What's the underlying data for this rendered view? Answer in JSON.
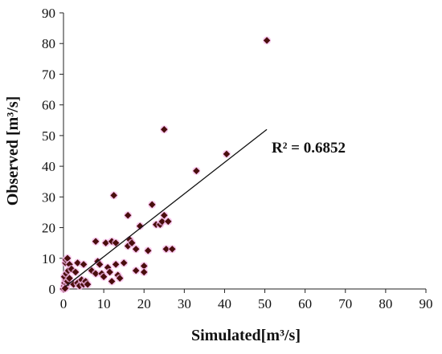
{
  "chart_data": {
    "type": "scatter",
    "xlabel": "Simulated[m³/s]",
    "ylabel": "Observed [m³/s]",
    "xlim": [
      0,
      90
    ],
    "ylim": [
      0,
      90
    ],
    "xticks": [
      0,
      10,
      20,
      30,
      40,
      50,
      60,
      70,
      80,
      90
    ],
    "yticks": [
      0,
      10,
      20,
      30,
      40,
      50,
      60,
      70,
      80,
      90
    ],
    "grid": false,
    "marker_color": "#4a0d0d",
    "halo_color": "#f5b8e8",
    "trendline": {
      "type": "linear",
      "x": [
        0.5,
        50.5
      ],
      "y": [
        0.8,
        52
      ],
      "r2_label": "R² = 0.6852"
    },
    "points": [
      [
        0,
        0
      ],
      [
        0.2,
        1
      ],
      [
        0.3,
        2
      ],
      [
        0.5,
        3
      ],
      [
        0.2,
        4
      ],
      [
        0.6,
        0.5
      ],
      [
        0.8,
        1.5
      ],
      [
        1,
        2.5
      ],
      [
        0.4,
        0.2
      ],
      [
        0.7,
        5
      ],
      [
        0.5,
        8.5
      ],
      [
        0.6,
        9.5
      ],
      [
        1,
        10
      ],
      [
        1.5,
        8
      ],
      [
        1.2,
        6
      ],
      [
        1.5,
        3.5
      ],
      [
        2,
        6.5
      ],
      [
        2.5,
        1.5
      ],
      [
        3,
        5.5
      ],
      [
        3.5,
        8.5
      ],
      [
        3.5,
        2
      ],
      [
        4,
        1
      ],
      [
        4.5,
        3
      ],
      [
        5,
        8
      ],
      [
        5,
        1.5
      ],
      [
        5.5,
        2.5
      ],
      [
        6,
        1.5
      ],
      [
        7,
        6
      ],
      [
        8,
        5
      ],
      [
        8,
        15.5
      ],
      [
        8.5,
        9
      ],
      [
        9,
        8
      ],
      [
        9.5,
        5
      ],
      [
        10,
        4
      ],
      [
        10.5,
        15
      ],
      [
        11,
        7
      ],
      [
        11.5,
        5.5
      ],
      [
        12,
        2.5
      ],
      [
        12,
        15.5
      ],
      [
        12.5,
        30.5
      ],
      [
        13,
        15
      ],
      [
        13,
        8
      ],
      [
        13.5,
        4.5
      ],
      [
        14,
        3.5
      ],
      [
        15,
        8.5
      ],
      [
        16,
        24
      ],
      [
        16,
        14
      ],
      [
        16.5,
        16
      ],
      [
        17,
        15
      ],
      [
        18,
        13
      ],
      [
        18,
        6
      ],
      [
        19,
        20.5
      ],
      [
        20,
        7.5
      ],
      [
        20,
        5.5
      ],
      [
        21,
        12.5
      ],
      [
        22,
        27.5
      ],
      [
        23,
        21
      ],
      [
        24,
        21
      ],
      [
        24.5,
        22
      ],
      [
        25,
        52
      ],
      [
        25,
        24
      ],
      [
        25.5,
        13
      ],
      [
        26,
        22
      ],
      [
        27,
        13
      ],
      [
        33,
        38.5
      ],
      [
        40.5,
        44
      ],
      [
        50.5,
        81
      ]
    ]
  }
}
